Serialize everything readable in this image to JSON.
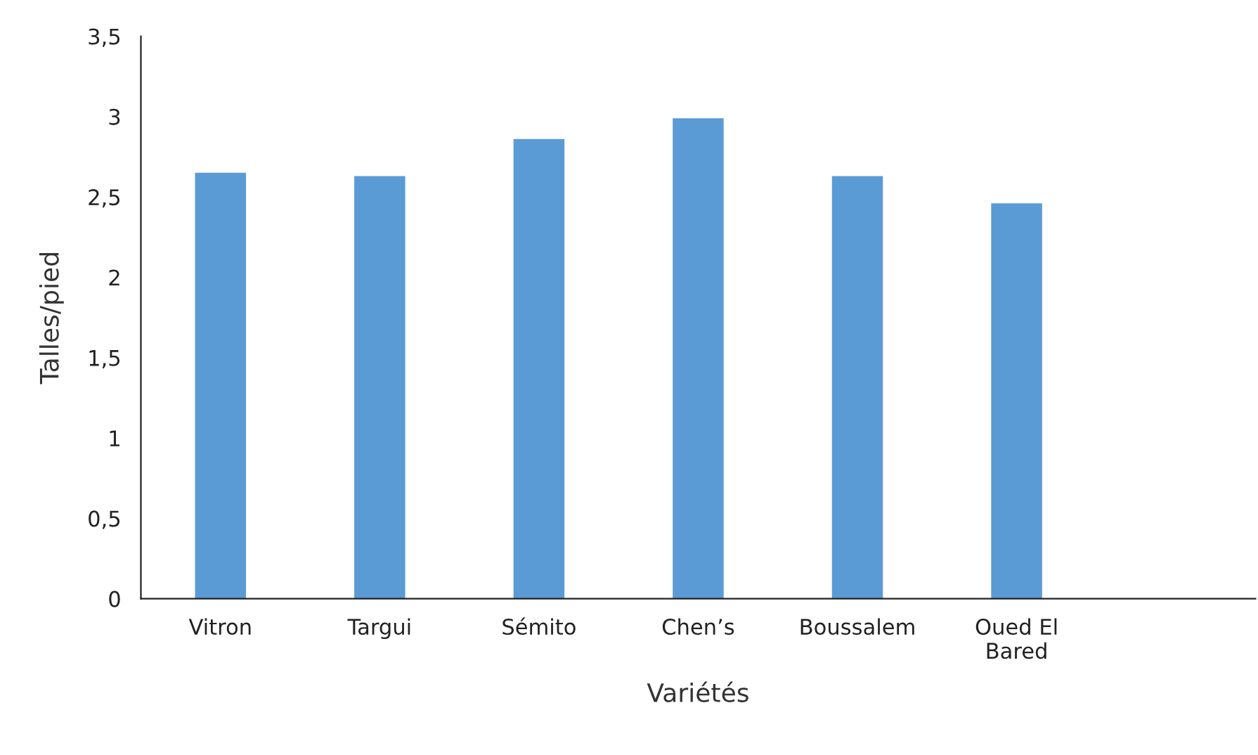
{
  "chart_data": {
    "type": "bar",
    "xlabel": "Variétés",
    "ylabel": "Talles/pied",
    "categories": [
      "Vitron",
      "Targui",
      "Sémito",
      "Chen’s",
      "Boussalem",
      "Oued El\nBared",
      null
    ],
    "values": [
      2.65,
      2.63,
      2.86,
      2.99,
      2.63,
      2.46,
      null
    ],
    "color": "#5b9bd5",
    "ylim": [
      0,
      3.5
    ],
    "yticks": [
      {
        "value": 0,
        "label": "0"
      },
      {
        "value": 0.5,
        "label": "0,5"
      },
      {
        "value": 1,
        "label": "1"
      },
      {
        "value": 1.5,
        "label": "1,5"
      },
      {
        "value": 2,
        "label": "2"
      },
      {
        "value": 2.5,
        "label": "2,5"
      },
      {
        "value": 3,
        "label": "3"
      },
      {
        "value": 3.5,
        "label": "3,5"
      }
    ],
    "grid": false
  }
}
